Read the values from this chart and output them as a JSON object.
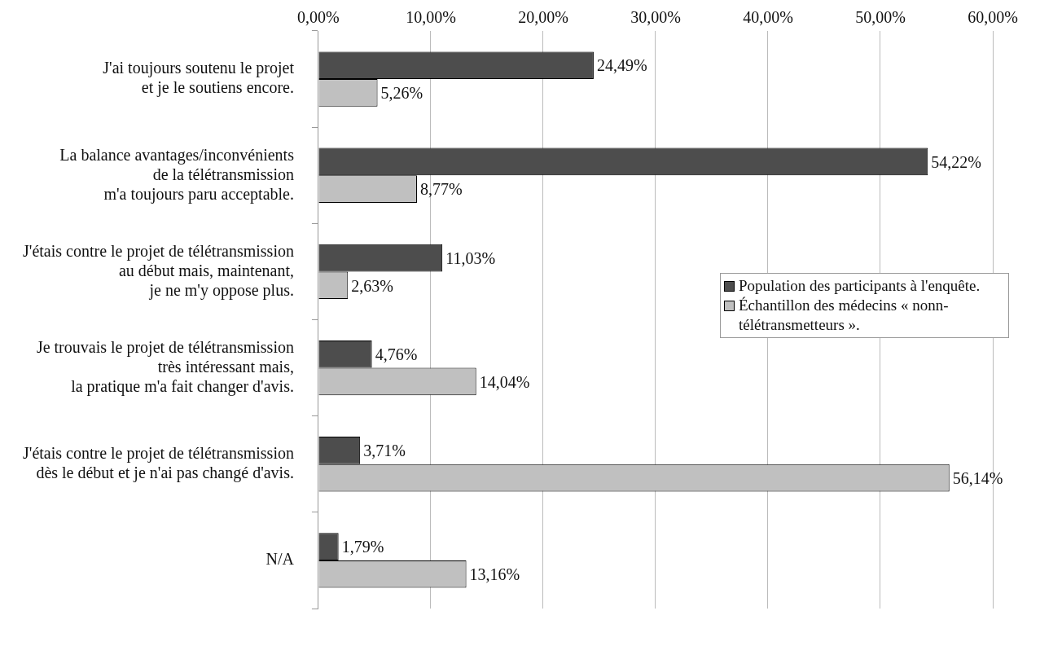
{
  "chart_data": {
    "type": "bar",
    "orientation": "horizontal",
    "categories": [
      "J'ai toujours soutenu le projet\net je le soutiens encore.",
      "La balance avantages/inconvénients\nde la télétransmission\nm'a toujours paru acceptable.",
      "J'étais contre le projet de télétransmission\nau début mais, maintenant,\nje ne m'y oppose plus.",
      "Je trouvais le projet de télétransmission\ntrès intéressant mais,\nla pratique m'a fait changer d'avis.",
      "J'étais contre le projet de télétransmission\ndès le début et je n'ai pas changé d'avis.",
      "N/A"
    ],
    "series": [
      {
        "name": "Population des participants à l'enquête.",
        "color": "#4d4d4d",
        "values": [
          24.49,
          54.22,
          11.03,
          4.76,
          3.71,
          1.79
        ],
        "value_labels": [
          "24,49%",
          "54,22%",
          "11,03%",
          "4,76%",
          "3,71%",
          "1,79%"
        ]
      },
      {
        "name": "Échantillon des médecins « nonn-télétransmetteurs ».",
        "color": "#c0c0c0",
        "values": [
          5.26,
          8.77,
          2.63,
          14.04,
          56.14,
          13.16
        ],
        "value_labels": [
          "5,26%",
          "8,77%",
          "2,63%",
          "14,04%",
          "56,14%",
          "13,16%"
        ]
      }
    ],
    "xlim": [
      0,
      60
    ],
    "xticks": [
      {
        "value": 0,
        "label": "0,00%"
      },
      {
        "value": 10,
        "label": "10,00%"
      },
      {
        "value": 20,
        "label": "20,00%"
      },
      {
        "value": 30,
        "label": "30,00%"
      },
      {
        "value": 40,
        "label": "40,00%"
      },
      {
        "value": 50,
        "label": "50,00%"
      },
      {
        "value": 60,
        "label": "60,00%"
      }
    ],
    "grid": "x",
    "legend": "right"
  }
}
